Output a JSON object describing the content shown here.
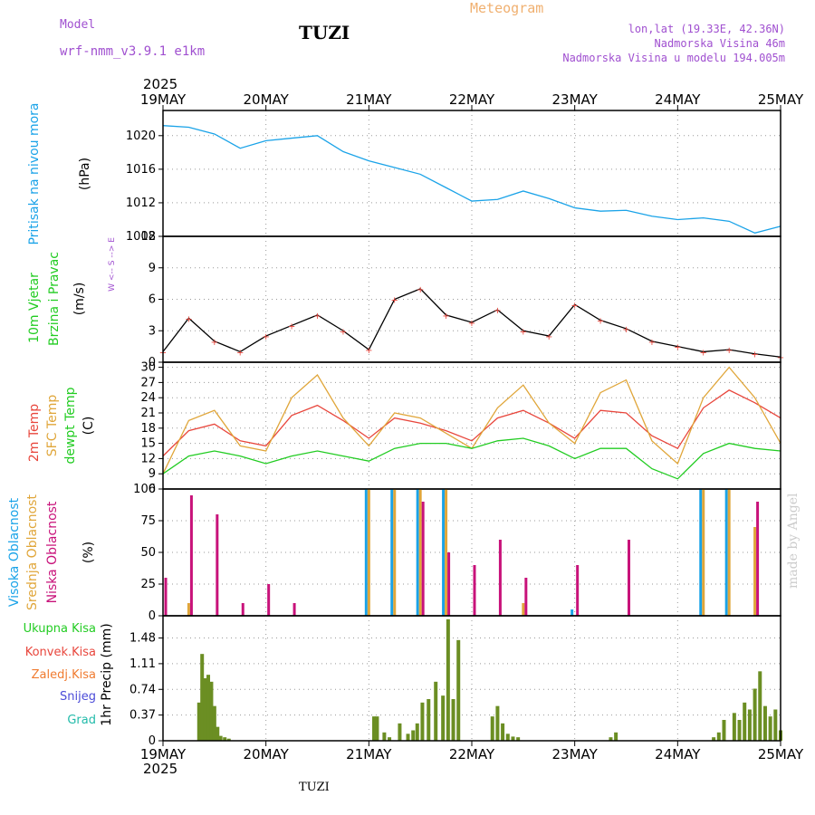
{
  "header": {
    "model_label": "Model",
    "model_name": "wrf-nmm_v3.9.1 e1km",
    "station": "TUZI",
    "title": "Meteogram",
    "lonlat": "lon,lat (19.33E, 42.36N)",
    "elevation": "Nadmorska Visina 46m",
    "model_elevation": "Nadmorska Visina u modelu 194.005m",
    "made_by": "made by Angel",
    "bottom_station": "TUZI"
  },
  "colors": {
    "pressure": "#1aa3e8",
    "temp2m": "#e8463c",
    "sfc_temp": "#e0a63a",
    "dewpt": "#22cc22",
    "high_cloud": "#1aa3e8",
    "mid_cloud": "#e0a63a",
    "low_cloud": "#c8127a",
    "total_precip": "#6b8e23",
    "conv_precip": "#e8463c",
    "snow": "#4b4bd8",
    "hail": "#22bbaa",
    "grid": "#999999"
  },
  "time_axis": {
    "year": "2025",
    "labels": [
      "19MAY",
      "20MAY",
      "21MAY",
      "22MAY",
      "23MAY",
      "24MAY",
      "25MAY"
    ]
  },
  "chart_data": [
    {
      "type": "line",
      "panel": "pressure",
      "ylabel_1": "Pritisak na nivou mora",
      "ylabel_2": "(hPa)",
      "ylim": [
        1008,
        1023
      ],
      "yticks": [
        1008,
        1012,
        1016,
        1020
      ],
      "x_days": [
        0,
        0.25,
        0.5,
        0.75,
        1.0,
        1.25,
        1.5,
        1.75,
        2.0,
        2.25,
        2.5,
        2.75,
        3.0,
        3.25,
        3.5,
        3.75,
        4.0,
        4.25,
        4.5,
        4.75,
        5.0,
        5.25,
        5.5,
        5.75,
        6.0
      ],
      "series": [
        {
          "values": [
            1021.2,
            1021.0,
            1020.2,
            1018.5,
            1019.4,
            1019.7,
            1020.0,
            1018.1,
            1017.0,
            1016.2,
            1015.4,
            1013.8,
            1012.2,
            1012.4,
            1013.4,
            1012.5,
            1011.4,
            1011.0,
            1011.1,
            1010.4,
            1010.0,
            1010.2,
            1009.8,
            1008.4,
            1009.2
          ]
        }
      ]
    },
    {
      "type": "line",
      "panel": "wind",
      "ylabel_1": "10m Vjetar",
      "ylabel_2": "Brzina i Pravac",
      "ylabel_3": "(m/s)",
      "compass": "W <-- S --> E",
      "ylim": [
        0,
        12
      ],
      "yticks": [
        0,
        3,
        6,
        9,
        12
      ],
      "x_days": [
        0,
        0.25,
        0.5,
        0.75,
        1.0,
        1.25,
        1.5,
        1.75,
        2.0,
        2.25,
        2.5,
        2.75,
        3.0,
        3.25,
        3.5,
        3.75,
        4.0,
        4.25,
        4.5,
        4.75,
        5.0,
        5.25,
        5.5,
        5.75,
        6.0
      ],
      "series": [
        {
          "values": [
            1.0,
            4.2,
            2.0,
            1.0,
            2.5,
            3.5,
            4.5,
            3.0,
            1.2,
            6.0,
            7.0,
            4.5,
            3.8,
            5.0,
            3.0,
            2.5,
            5.5,
            4.0,
            3.2,
            2.0,
            1.5,
            1.0,
            1.2,
            0.8,
            0.5
          ]
        }
      ]
    },
    {
      "type": "line",
      "panel": "temperature",
      "ylabel_1": "2m Temp",
      "ylabel_2": "SFC Temp",
      "ylabel_3": "dewpt Temp",
      "ylabel_4": "(C)",
      "ylim": [
        6,
        31
      ],
      "yticks": [
        6,
        9,
        12,
        15,
        18,
        21,
        24,
        27,
        30
      ],
      "x_days": [
        0,
        0.25,
        0.5,
        0.75,
        1.0,
        1.25,
        1.5,
        1.75,
        2.0,
        2.25,
        2.5,
        2.75,
        3.0,
        3.25,
        3.5,
        3.75,
        4.0,
        4.25,
        4.5,
        4.75,
        5.0,
        5.25,
        5.5,
        5.75,
        6.0
      ],
      "series": [
        {
          "name": "2m Temp",
          "values": [
            12.5,
            17.5,
            18.8,
            15.5,
            14.5,
            20.5,
            22.5,
            19.5,
            16.0,
            20.0,
            19.0,
            17.5,
            15.5,
            20.0,
            21.5,
            19.0,
            16.0,
            21.5,
            21.0,
            16.5,
            14.0,
            22.0,
            25.5,
            23.0,
            20.0
          ]
        },
        {
          "name": "SFC Temp",
          "values": [
            9.0,
            19.5,
            21.5,
            14.5,
            13.5,
            24.0,
            28.5,
            20.0,
            14.5,
            21.0,
            20.0,
            17.0,
            14.0,
            22.0,
            26.5,
            19.0,
            15.0,
            25.0,
            27.5,
            15.5,
            11.0,
            24.0,
            30.0,
            24.0,
            15.0
          ]
        },
        {
          "name": "dewpt Temp",
          "values": [
            9.0,
            12.5,
            13.5,
            12.5,
            11.0,
            12.5,
            13.5,
            12.5,
            11.5,
            14.0,
            15.0,
            15.0,
            14.0,
            15.5,
            16.0,
            14.5,
            12.0,
            14.0,
            14.0,
            10.0,
            8.0,
            13.0,
            15.0,
            14.0,
            13.5
          ]
        }
      ]
    },
    {
      "type": "bar",
      "panel": "cloud",
      "ylabel_1": "Visoka Oblacnost",
      "ylabel_2": "Srednja Oblacnost",
      "ylabel_3": "Niska Oblacnost",
      "ylabel_4": "(%)",
      "ylim": [
        0,
        100
      ],
      "yticks": [
        0,
        25,
        50,
        75,
        100
      ],
      "x_days": [
        0,
        0.25,
        0.5,
        0.75,
        1.0,
        1.25,
        1.5,
        1.75,
        2.0,
        2.25,
        2.5,
        2.75,
        3.0,
        3.25,
        3.5,
        3.75,
        4.0,
        4.25,
        4.5,
        4.75,
        5.0,
        5.25,
        5.5,
        5.75,
        6.0
      ],
      "series": [
        {
          "name": "Visoka Oblacnost",
          "values": [
            0,
            0,
            0,
            0,
            0,
            0,
            0,
            0,
            100,
            100,
            100,
            100,
            0,
            0,
            0,
            0,
            5,
            0,
            0,
            0,
            0,
            100,
            100,
            0,
            0
          ]
        },
        {
          "name": "Srednja Oblacnost",
          "values": [
            0,
            10,
            0,
            0,
            0,
            0,
            0,
            0,
            100,
            100,
            100,
            100,
            0,
            0,
            10,
            0,
            0,
            0,
            0,
            0,
            0,
            100,
            100,
            70,
            0
          ]
        },
        {
          "name": "Niska Oblacnost",
          "values": [
            30,
            95,
            80,
            10,
            25,
            10,
            0,
            0,
            0,
            0,
            90,
            50,
            40,
            60,
            30,
            0,
            40,
            0,
            60,
            0,
            0,
            0,
            0,
            90,
            0
          ]
        }
      ]
    },
    {
      "type": "bar",
      "panel": "precipitation",
      "ylabel_1": "1hr Precip (mm)",
      "legend": [
        "Ukupna Kisa",
        "Konvek.Kisa",
        "Zaledj.Kisa",
        "Snijeg",
        "Grad"
      ],
      "ylim": [
        0,
        1.8
      ],
      "yticks": [
        0,
        0.37,
        0.74,
        1.11,
        1.48
      ],
      "x_days": [
        0.35,
        0.38,
        0.41,
        0.44,
        0.47,
        0.5,
        0.53,
        0.56,
        0.6,
        0.64,
        2.05,
        2.08,
        2.15,
        2.2,
        2.3,
        2.38,
        2.43,
        2.47,
        2.52,
        2.58,
        2.65,
        2.72,
        2.77,
        2.82,
        2.87,
        3.2,
        3.25,
        3.3,
        3.35,
        3.4,
        3.45,
        4.35,
        4.4,
        5.35,
        5.4,
        5.45,
        5.55,
        5.6,
        5.65,
        5.7,
        5.75,
        5.8,
        5.85,
        5.9,
        5.95,
        6.0
      ],
      "series": [
        {
          "name": "Ukupna Kisa",
          "values": [
            0.55,
            1.25,
            0.9,
            0.95,
            0.85,
            0.5,
            0.2,
            0.07,
            0.05,
            0.03,
            0.35,
            0.35,
            0.12,
            0.05,
            0.25,
            0.1,
            0.15,
            0.25,
            0.55,
            0.6,
            0.85,
            0.65,
            1.75,
            0.6,
            1.45,
            0.35,
            0.5,
            0.25,
            0.1,
            0.06,
            0.05,
            0.05,
            0.12,
            0.05,
            0.12,
            0.3,
            0.4,
            0.3,
            0.55,
            0.45,
            0.75,
            1.0,
            0.5,
            0.35,
            0.45,
            0.15
          ]
        }
      ]
    }
  ]
}
